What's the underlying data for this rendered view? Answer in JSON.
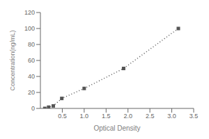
{
  "chart_data": {
    "type": "line",
    "x": [
      0.1,
      0.188,
      0.294,
      0.488,
      1.0,
      1.9,
      3.15
    ],
    "values": [
      0.0,
      1.56,
      3.13,
      12.5,
      25.0,
      50.0,
      100.0
    ],
    "xlabel": "Optical Density",
    "ylabel": "Concentration(ng/mL)",
    "xlim": [
      0,
      3.5
    ],
    "ylim": [
      0,
      120
    ],
    "xticks": [
      0.5,
      {
        "value": 1.0,
        "label": "1.0"
      },
      1.5,
      {
        "value": 2.0,
        "label": "2.0"
      },
      2.5,
      {
        "value": 3.0,
        "label": "3.0"
      },
      3.5
    ],
    "yticks": [
      0,
      20,
      40,
      60,
      80,
      100,
      120
    ],
    "color": "#555555",
    "marker": "square",
    "line_style": "dotted",
    "grid": false
  }
}
